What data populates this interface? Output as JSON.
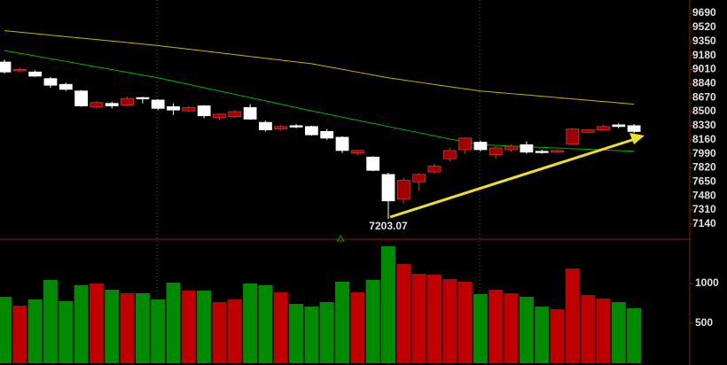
{
  "chart_data": [
    {
      "type": "candlestick",
      "open": [
        9100,
        9000,
        8980,
        8900,
        8830,
        8750,
        8560,
        8600,
        8580,
        8670,
        8640,
        8560,
        8510,
        8570,
        8430,
        8440,
        8550,
        8370,
        8290,
        8330,
        8320,
        8260,
        8190,
        8000,
        7950,
        7740,
        7440,
        7650,
        7770,
        7930,
        8040,
        8130,
        7980,
        8040,
        8100,
        8020,
        8010,
        8110,
        8250,
        8280,
        8340,
        8330
      ],
      "high": [
        9130,
        9030,
        9000,
        8920,
        8850,
        8760,
        8630,
        8620,
        8680,
        8680,
        8650,
        8600,
        8570,
        8580,
        8480,
        8520,
        8590,
        8390,
        8340,
        8350,
        8330,
        8290,
        8200,
        8040,
        7960,
        7760,
        7700,
        7760,
        7870,
        8060,
        8190,
        8150,
        8080,
        8100,
        8140,
        8040,
        8040,
        8300,
        8290,
        8340,
        8360,
        8350
      ],
      "low": [
        8960,
        8980,
        8920,
        8790,
        8750,
        8560,
        8540,
        8540,
        8570,
        8600,
        8520,
        8460,
        8500,
        8420,
        8400,
        8420,
        8400,
        8260,
        8270,
        8300,
        8210,
        8160,
        8000,
        7970,
        7780,
        7203.07,
        7390,
        7540,
        7750,
        7900,
        7990,
        8020,
        7930,
        8010,
        7990,
        7990,
        8000,
        8100,
        8240,
        8270,
        8300,
        8240
      ],
      "close": [
        8980,
        9010,
        8930,
        8820,
        8770,
        8570,
        8610,
        8570,
        8660,
        8660,
        8540,
        8520,
        8550,
        8450,
        8470,
        8500,
        8410,
        8280,
        8320,
        8320,
        8220,
        8180,
        8030,
        8030,
        7790,
        7420,
        7670,
        7740,
        7840,
        8030,
        8180,
        8040,
        8060,
        8080,
        8010,
        8010,
        8030,
        8290,
        8280,
        8320,
        8320,
        8260
      ],
      "up_color": "#a00000",
      "down_color": "#ffffff",
      "ma_lines": [
        {
          "color": "#c8b400",
          "values": [
            9480,
            9462,
            9444,
            9426,
            9408,
            9390,
            9372,
            9354,
            9336,
            9318,
            9300,
            9278,
            9256,
            9234,
            9212,
            9190,
            9168,
            9146,
            9124,
            9102,
            9080,
            9046,
            9012,
            8978,
            8944,
            8910,
            8883,
            8856,
            8829,
            8802,
            8776,
            8750,
            8734,
            8718,
            8702,
            8686,
            8670,
            8654,
            8638,
            8622,
            8606,
            8590
          ]
        },
        {
          "color": "#00b000",
          "values": [
            9240,
            9207,
            9174,
            9141,
            9108,
            9075,
            9042,
            9009,
            8976,
            8943,
            8910,
            8870,
            8830,
            8790,
            8750,
            8710,
            8670,
            8630,
            8590,
            8550,
            8510,
            8472,
            8434,
            8396,
            8358,
            8320,
            8282,
            8245,
            8208,
            8170,
            8135,
            8100,
            8092,
            8084,
            8076,
            8068,
            8060,
            8052,
            8044,
            8036,
            8028,
            8020
          ]
        }
      ],
      "ylim": [
        6978,
        9851
      ],
      "yticks": [
        9690,
        9520,
        9350,
        9180,
        9010,
        8840,
        8670,
        8500,
        8330,
        8160,
        7990,
        7820,
        7650,
        7480,
        7310,
        7140
      ]
    },
    {
      "type": "bar",
      "values": [
        833,
        722,
        800,
        1044,
        778,
        978,
        1000,
        922,
        878,
        878,
        800,
        1011,
        911,
        911,
        767,
        800,
        1000,
        978,
        889,
        744,
        711,
        767,
        1022,
        889,
        1044,
        1467,
        1244,
        1122,
        1111,
        1056,
        1022,
        867,
        922,
        878,
        833,
        711,
        678,
        1189,
        856,
        811,
        767,
        689
      ],
      "up_color": "#c00000",
      "down_color": "#008a00",
      "ylim": [
        0,
        1522
      ],
      "yticks": [
        500,
        1000
      ]
    }
  ]
}
